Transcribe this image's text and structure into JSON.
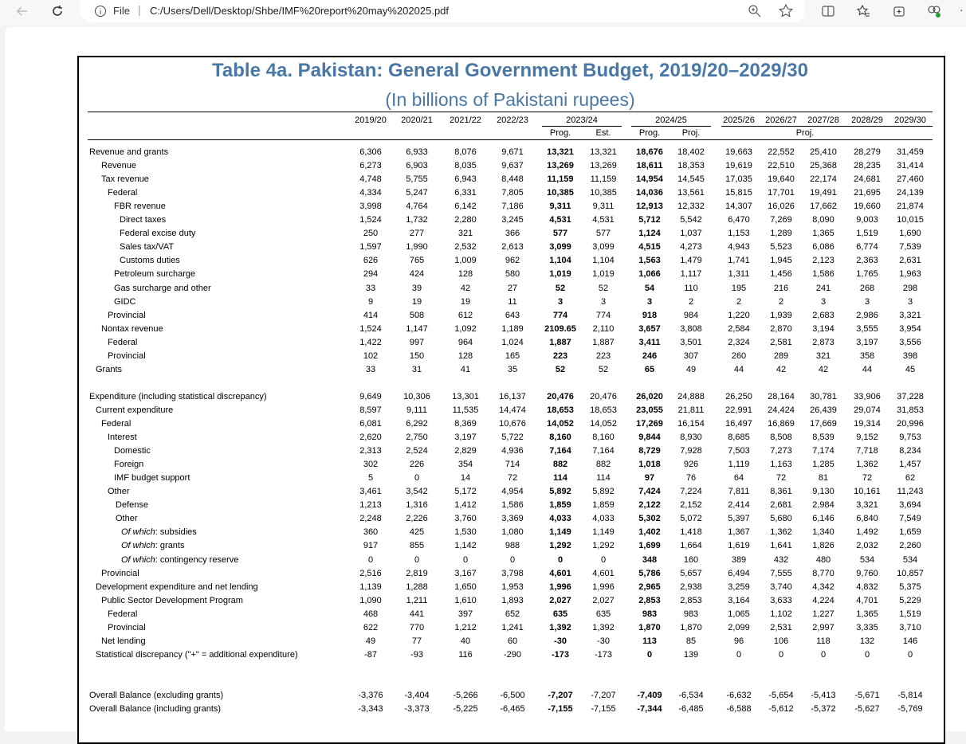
{
  "browser": {
    "tab_label": "File",
    "url": "C:/Users/Dell/Desktop/Shbe/IMF%20report%20may%202025.pdf"
  },
  "table": {
    "title": "Table 4a. Pakistan: General Government Budget, 2019/20–2029/30",
    "subtitle": "(In billions of Pakistani rupees)",
    "header": {
      "years": [
        "2019/20",
        "2020/21",
        "2021/22",
        "2022/23",
        "2023/24",
        "2024/25",
        "2025/26",
        "2026/27",
        "2027/28",
        "2028/29",
        "2029/30"
      ],
      "sub": [
        "Prog.",
        "Est.",
        "Prog.",
        "Proj."
      ],
      "proj": "Proj."
    },
    "rows": [
      {
        "label": "Revenue and grants",
        "values": [
          "6,306",
          "6,933",
          "8,076",
          "9,671",
          "13,321",
          "13,321",
          "18,676",
          "18,402",
          "19,663",
          "22,552",
          "25,410",
          "28,279",
          "31,459"
        ]
      },
      {
        "label": "Revenue",
        "values": [
          "6,273",
          "6,903",
          "8,035",
          "9,637",
          "13,269",
          "13,269",
          "18,611",
          "18,353",
          "19,619",
          "22,510",
          "25,368",
          "28,235",
          "31,414"
        ]
      },
      {
        "label": "Tax revenue",
        "values": [
          "4,748",
          "5,755",
          "6,943",
          "8,448",
          "11,159",
          "11,159",
          "14,954",
          "14,545",
          "17,035",
          "19,640",
          "22,174",
          "24,681",
          "27,460"
        ]
      },
      {
        "label": "Federal",
        "values": [
          "4,334",
          "5,247",
          "6,331",
          "7,805",
          "10,385",
          "10,385",
          "14,036",
          "13,561",
          "15,815",
          "17,701",
          "19,491",
          "21,695",
          "24,139"
        ]
      },
      {
        "label": "FBR revenue",
        "values": [
          "3,998",
          "4,764",
          "6,142",
          "7,186",
          "9,311",
          "9,311",
          "12,913",
          "12,332",
          "14,307",
          "16,026",
          "17,662",
          "19,660",
          "21,874"
        ]
      },
      {
        "label": "Direct taxes",
        "values": [
          "1,524",
          "1,732",
          "2,280",
          "3,245",
          "4,531",
          "4,531",
          "5,712",
          "5,542",
          "6,470",
          "7,269",
          "8,090",
          "9,003",
          "10,015"
        ]
      },
      {
        "label": "Federal excise duty",
        "values": [
          "250",
          "277",
          "321",
          "366",
          "577",
          "577",
          "1,124",
          "1,037",
          "1,153",
          "1,289",
          "1,365",
          "1,519",
          "1,690"
        ]
      },
      {
        "label": "Sales tax/VAT",
        "values": [
          "1,597",
          "1,990",
          "2,532",
          "2,613",
          "3,099",
          "3,099",
          "4,515",
          "4,273",
          "4,943",
          "5,523",
          "6,086",
          "6,774",
          "7,539"
        ]
      },
      {
        "label": "Customs duties",
        "values": [
          "626",
          "765",
          "1,009",
          "962",
          "1,104",
          "1,104",
          "1,563",
          "1,479",
          "1,741",
          "1,945",
          "2,123",
          "2,363",
          "2,631"
        ]
      },
      {
        "label": "Petroleum surcharge",
        "values": [
          "294",
          "424",
          "128",
          "580",
          "1,019",
          "1,019",
          "1,066",
          "1,117",
          "1,311",
          "1,456",
          "1,586",
          "1,765",
          "1,963"
        ]
      },
      {
        "label": "Gas surcharge and other",
        "values": [
          "33",
          "39",
          "42",
          "27",
          "52",
          "52",
          "54",
          "110",
          "195",
          "216",
          "241",
          "268",
          "298"
        ]
      },
      {
        "label": "GIDC",
        "values": [
          "9",
          "19",
          "19",
          "11",
          "3",
          "3",
          "3",
          "2",
          "2",
          "2",
          "3",
          "3",
          "3"
        ]
      },
      {
        "label": "Provincial",
        "values": [
          "414",
          "508",
          "612",
          "643",
          "774",
          "774",
          "918",
          "984",
          "1,220",
          "1,939",
          "2,683",
          "2,986",
          "3,321"
        ]
      },
      {
        "label": "Nontax revenue",
        "values": [
          "1,524",
          "1,147",
          "1,092",
          "1,189",
          "2109.65",
          "2,110",
          "3,657",
          "3,808",
          "2,584",
          "2,870",
          "3,194",
          "3,555",
          "3,954"
        ]
      },
      {
        "label": "Federal",
        "values": [
          "1,422",
          "997",
          "964",
          "1,024",
          "1,887",
          "1,887",
          "3,411",
          "3,501",
          "2,324",
          "2,581",
          "2,873",
          "3,197",
          "3,556"
        ]
      },
      {
        "label": "Provincial",
        "values": [
          "102",
          "150",
          "128",
          "165",
          "223",
          "223",
          "246",
          "307",
          "260",
          "289",
          "321",
          "358",
          "398"
        ]
      },
      {
        "label": "Grants",
        "values": [
          "33",
          "31",
          "41",
          "35",
          "52",
          "52",
          "65",
          "49",
          "44",
          "42",
          "42",
          "44",
          "45"
        ]
      },
      {
        "label": "Expenditure (including statistical discrepancy)",
        "values": [
          "9,649",
          "10,306",
          "13,301",
          "16,137",
          "20,476",
          "20,476",
          "26,020",
          "24,888",
          "26,250",
          "28,164",
          "30,781",
          "33,906",
          "37,228"
        ]
      },
      {
        "label": "Current expenditure",
        "values": [
          "8,597",
          "9,111",
          "11,535",
          "14,474",
          "18,653",
          "18,653",
          "23,055",
          "21,811",
          "22,991",
          "24,424",
          "26,439",
          "29,074",
          "31,853"
        ]
      },
      {
        "label": "Federal",
        "values": [
          "6,081",
          "6,292",
          "8,369",
          "10,676",
          "14,052",
          "14,052",
          "17,269",
          "16,154",
          "16,497",
          "16,869",
          "17,669",
          "19,314",
          "20,996"
        ]
      },
      {
        "label": "Interest",
        "values": [
          "2,620",
          "2,750",
          "3,197",
          "5,722",
          "8,160",
          "8,160",
          "9,844",
          "8,930",
          "8,685",
          "8,508",
          "8,539",
          "9,152",
          "9,753"
        ]
      },
      {
        "label": "Domestic",
        "values": [
          "2,313",
          "2,524",
          "2,829",
          "4,936",
          "7,164",
          "7,164",
          "8,729",
          "7,928",
          "7,503",
          "7,273",
          "7,174",
          "7,718",
          "8,234"
        ]
      },
      {
        "label": "Foreign",
        "values": [
          "302",
          "226",
          "354",
          "714",
          "882",
          "882",
          "1,018",
          "926",
          "1,119",
          "1,163",
          "1,285",
          "1,362",
          "1,457"
        ]
      },
      {
        "label": "IMF budget support",
        "values": [
          "5",
          "0",
          "14",
          "72",
          "114",
          "114",
          "97",
          "76",
          "64",
          "72",
          "81",
          "72",
          "62"
        ]
      },
      {
        "label": "Other",
        "values": [
          "3,461",
          "3,542",
          "5,172",
          "4,954",
          "5,892",
          "5,892",
          "7,424",
          "7,224",
          "7,811",
          "8,361",
          "9,130",
          "10,161",
          "11,243"
        ]
      },
      {
        "label": "Defense",
        "values": [
          "1,213",
          "1,316",
          "1,412",
          "1,586",
          "1,859",
          "1,859",
          "2,122",
          "2,152",
          "2,414",
          "2,681",
          "2,984",
          "3,321",
          "3,694"
        ]
      },
      {
        "label": "Other",
        "values": [
          "2,248",
          "2,226",
          "3,760",
          "3,369",
          "4,033",
          "4,033",
          "5,302",
          "5,072",
          "5,397",
          "5,680",
          "6,146",
          "6,840",
          "7,549"
        ]
      },
      {
        "prefix": "Of which",
        "label": ": subsidies",
        "values": [
          "360",
          "425",
          "1,530",
          "1,080",
          "1,149",
          "1,149",
          "1,402",
          "1,418",
          "1,367",
          "1,362",
          "1,340",
          "1,492",
          "1,659"
        ]
      },
      {
        "prefix": "Of which",
        "label": ": grants",
        "values": [
          "917",
          "855",
          "1,142",
          "988",
          "1,292",
          "1,292",
          "1,699",
          "1,664",
          "1,619",
          "1,641",
          "1,826",
          "2,032",
          "2,260"
        ]
      },
      {
        "prefix": "Of which",
        "label": ": contingency reserve",
        "values": [
          "0",
          "0",
          "0",
          "0",
          "0",
          "0",
          "348",
          "160",
          "389",
          "432",
          "480",
          "534",
          "534"
        ]
      },
      {
        "label": "Provincial",
        "values": [
          "2,516",
          "2,819",
          "3,167",
          "3,798",
          "4,601",
          "4,601",
          "5,786",
          "5,657",
          "6,494",
          "7,555",
          "8,770",
          "9,760",
          "10,857"
        ]
      },
      {
        "label": "Development expenditure and net lending",
        "values": [
          "1,139",
          "1,288",
          "1,650",
          "1,953",
          "1,996",
          "1,996",
          "2,965",
          "2,938",
          "3,259",
          "3,740",
          "4,342",
          "4,832",
          "5,375"
        ]
      },
      {
        "label": "Public Sector Development Program",
        "values": [
          "1,090",
          "1,211",
          "1,610",
          "1,893",
          "2,027",
          "2,027",
          "2,853",
          "2,853",
          "3,164",
          "3,633",
          "4,224",
          "4,701",
          "5,229"
        ]
      },
      {
        "label": "Federal",
        "values": [
          "468",
          "441",
          "397",
          "652",
          "635",
          "635",
          "983",
          "983",
          "1,065",
          "1,102",
          "1,227",
          "1,365",
          "1,519"
        ]
      },
      {
        "label": "Provincial",
        "values": [
          "622",
          "770",
          "1,212",
          "1,241",
          "1,392",
          "1,392",
          "1,870",
          "1,870",
          "2,099",
          "2,531",
          "2,997",
          "3,335",
          "3,710"
        ]
      },
      {
        "label": "Net lending",
        "values": [
          "49",
          "77",
          "40",
          "60",
          "-30",
          "-30",
          "113",
          "85",
          "96",
          "106",
          "118",
          "132",
          "146"
        ]
      },
      {
        "label": "Statistical discrepancy (\"+\" = additional expenditure)",
        "values": [
          "-87",
          "-93",
          "116",
          "-290",
          "-173",
          "-173",
          "0",
          "139",
          "0",
          "0",
          "0",
          "0",
          "0"
        ]
      },
      {
        "label": "Overall Balance (excluding grants)",
        "values": [
          "-3,376",
          "-3,404",
          "-5,266",
          "-6,500",
          "-7,207",
          "-7,207",
          "-7,409",
          "-6,534",
          "-6,632",
          "-5,654",
          "-5,413",
          "-5,671",
          "-5,814"
        ]
      },
      {
        "label": "Overall Balance (including grants)",
        "values": [
          "-3,343",
          "-3,373",
          "-5,225",
          "-6,465",
          "-7,155",
          "-7,155",
          "-7,344",
          "-6,485",
          "-6,588",
          "-5,612",
          "-5,372",
          "-5,627",
          "-5,769"
        ]
      }
    ]
  }
}
